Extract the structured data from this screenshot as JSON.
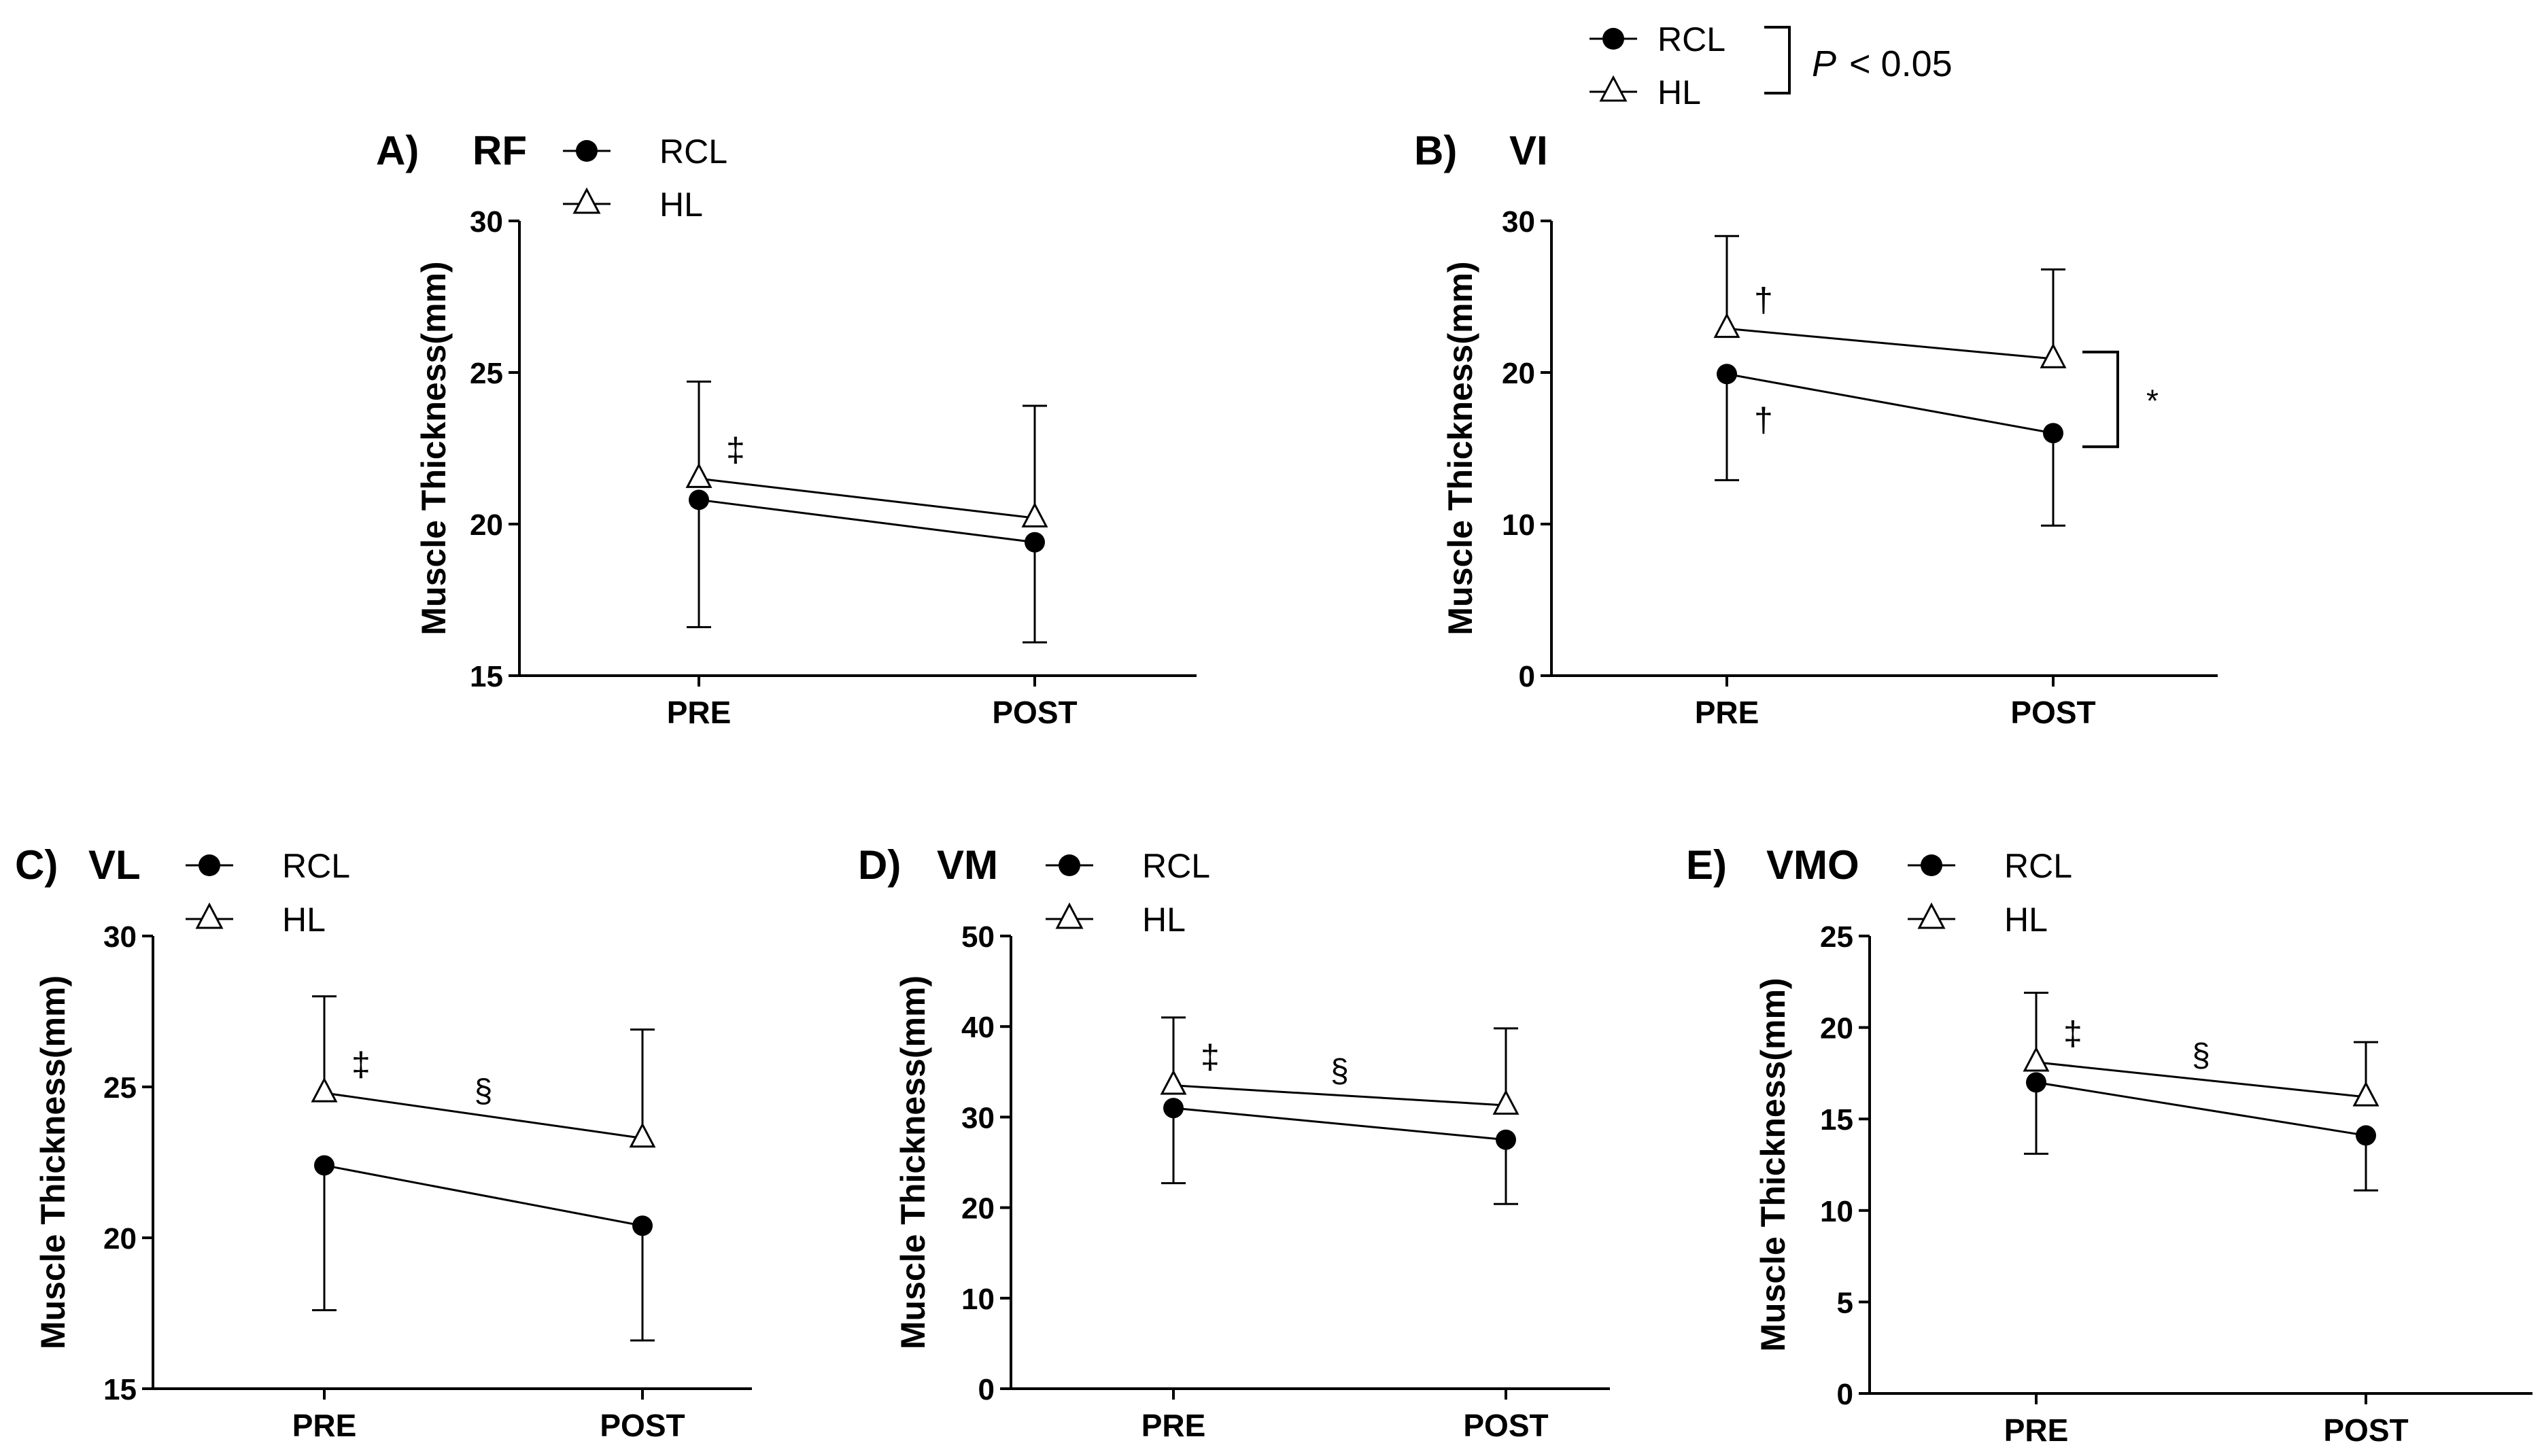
{
  "global_legend": {
    "items": [
      {
        "label": "RCL",
        "marker": "filled-circle"
      },
      {
        "label": "HL",
        "marker": "open-triangle"
      }
    ],
    "p_label": "P",
    "p_value": "< 0.05"
  },
  "chart_data": [
    {
      "type": "line",
      "panel": "A)",
      "title": "RF",
      "ylabel": "Muscle Thickness(mm)",
      "xlabel": "",
      "categories": [
        "PRE",
        "POST"
      ],
      "ylim": [
        15,
        30
      ],
      "yticks": [
        15,
        20,
        25,
        30
      ],
      "legend": "top-left",
      "series": [
        {
          "name": "RCL",
          "marker": "filled-circle",
          "values": [
            20.8,
            19.4
          ],
          "sd": [
            4.2,
            3.3
          ]
        },
        {
          "name": "HL",
          "marker": "open-triangle",
          "values": [
            21.5,
            20.2
          ],
          "sd": [
            3.2,
            3.7
          ]
        }
      ],
      "annotations": [
        {
          "text": "‡",
          "series": "HL",
          "index": 0
        }
      ]
    },
    {
      "type": "line",
      "panel": "B)",
      "title": "VI",
      "ylabel": "Muscle Thickness(mm)",
      "xlabel": "",
      "categories": [
        "PRE",
        "POST"
      ],
      "ylim": [
        0,
        30
      ],
      "yticks": [
        0,
        10,
        20,
        30
      ],
      "legend": "none",
      "series": [
        {
          "name": "RCL",
          "marker": "filled-circle",
          "values": [
            19.9,
            16.0
          ],
          "sd": [
            7.0,
            6.1
          ]
        },
        {
          "name": "HL",
          "marker": "open-triangle",
          "values": [
            22.9,
            20.9
          ],
          "sd": [
            6.1,
            5.9
          ]
        }
      ],
      "annotations": [
        {
          "text": "†",
          "series": "HL",
          "index": 0
        },
        {
          "text": "†",
          "series": "RCL",
          "index": 0
        },
        {
          "text": "*",
          "series": "bracket",
          "index": 1
        }
      ]
    },
    {
      "type": "line",
      "panel": "C)",
      "title": "VL",
      "ylabel": "Muscle Thickness(mm)",
      "xlabel": "",
      "categories": [
        "PRE",
        "POST"
      ],
      "ylim": [
        15,
        30
      ],
      "yticks": [
        15,
        20,
        25,
        30
      ],
      "legend": "top-left",
      "series": [
        {
          "name": "RCL",
          "marker": "filled-circle",
          "values": [
            22.4,
            20.4
          ],
          "sd": [
            4.8,
            3.8
          ]
        },
        {
          "name": "HL",
          "marker": "open-triangle",
          "values": [
            24.8,
            23.3
          ],
          "sd": [
            3.2,
            3.6
          ]
        }
      ],
      "annotations": [
        {
          "text": "‡",
          "series": "HL",
          "index": 0
        },
        {
          "text": "§",
          "series": "HL",
          "index": 0.5
        }
      ]
    },
    {
      "type": "line",
      "panel": "D)",
      "title": "VM",
      "ylabel": "Muscle Thickness(mm)",
      "xlabel": "",
      "categories": [
        "PRE",
        "POST"
      ],
      "ylim": [
        0,
        50
      ],
      "yticks": [
        0,
        10,
        20,
        30,
        40,
        50
      ],
      "legend": "top-left",
      "series": [
        {
          "name": "RCL",
          "marker": "filled-circle",
          "values": [
            31.0,
            27.5
          ],
          "sd": [
            8.3,
            7.1
          ]
        },
        {
          "name": "HL",
          "marker": "open-triangle",
          "values": [
            33.5,
            31.3
          ],
          "sd": [
            7.5,
            8.5
          ]
        }
      ],
      "annotations": [
        {
          "text": "‡",
          "series": "HL",
          "index": 0
        },
        {
          "text": "§",
          "series": "HL",
          "index": 0.5
        }
      ]
    },
    {
      "type": "line",
      "panel": "E)",
      "title": "VMO",
      "ylabel": "Muscle Thickness(mm)",
      "xlabel": "",
      "categories": [
        "PRE",
        "POST"
      ],
      "ylim": [
        0,
        25
      ],
      "yticks": [
        0,
        5,
        10,
        15,
        20,
        25
      ],
      "legend": "top-left",
      "series": [
        {
          "name": "RCL",
          "marker": "filled-circle",
          "values": [
            17.0,
            14.1
          ],
          "sd": [
            3.9,
            3.0
          ]
        },
        {
          "name": "HL",
          "marker": "open-triangle",
          "values": [
            18.1,
            16.2
          ],
          "sd": [
            3.8,
            3.0
          ]
        }
      ],
      "annotations": [
        {
          "text": "‡",
          "series": "HL",
          "index": 0
        },
        {
          "text": "§",
          "series": "HL",
          "index": 0.5
        }
      ]
    }
  ]
}
